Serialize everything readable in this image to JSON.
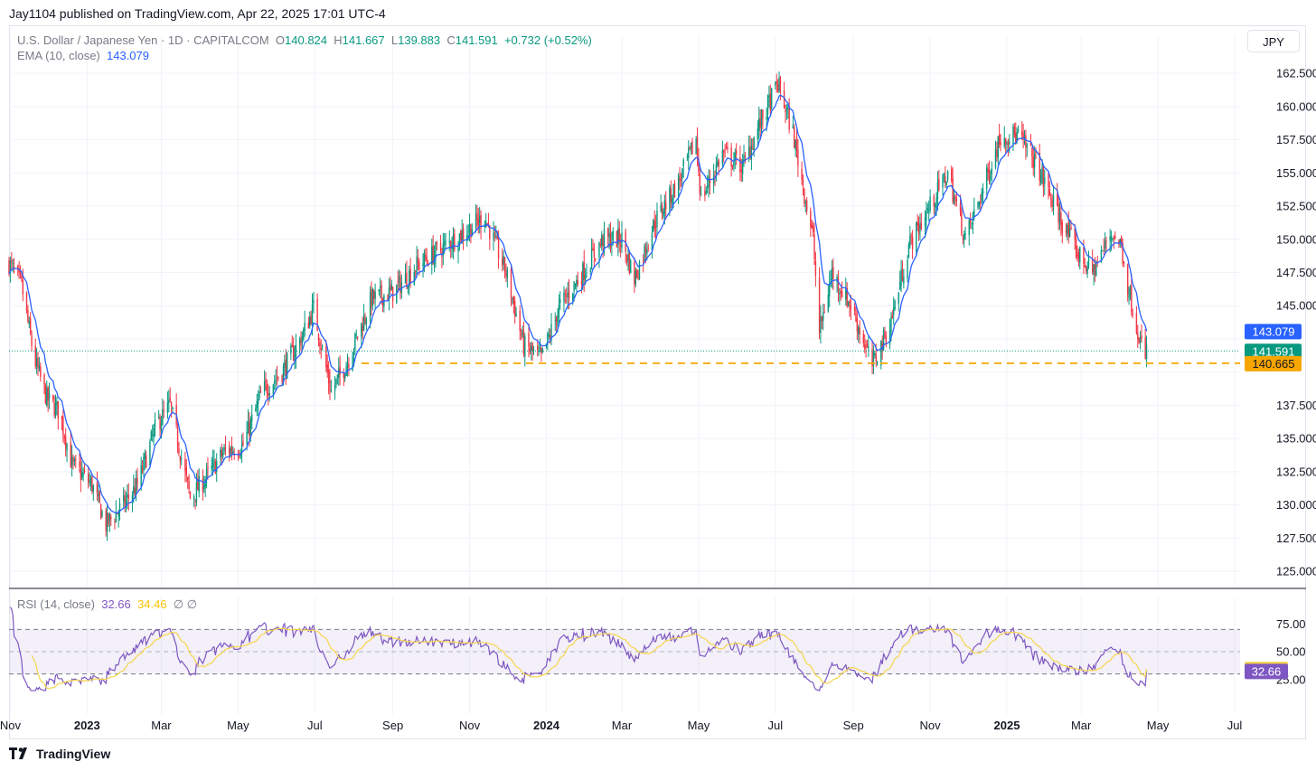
{
  "publish_line": "Jay1104 published on TradingView.com, Apr 22, 2025 17:01 UTC-4",
  "header": {
    "symbol": "U.S. Dollar / Japanese Yen · 1D · CAPITALCOM",
    "o_label": "O",
    "o_value": "140.824",
    "h_label": "H",
    "h_value": "141.667",
    "l_label": "L",
    "l_value": "139.883",
    "c_label": "C",
    "c_value": "141.591",
    "change": "+0.732 (+0.52%)",
    "ema_label": "EMA (10, close)",
    "ema_value": "143.079"
  },
  "currency_button": "JPY",
  "rsi_header": {
    "label": "RSI (14, close)",
    "rsi_value": "32.66",
    "ma_value": "34.46",
    "extra": "∅ ∅"
  },
  "price_badges": {
    "ema": "143.079",
    "close": "141.591",
    "support": "140.665"
  },
  "rsi_badges": {
    "ma": "34.46",
    "rsi": "32.66"
  },
  "footer_brand": "TradingView",
  "colors": {
    "up": "#089981",
    "down": "#f23645",
    "ema": "#2962ff",
    "support": "#f7a600",
    "rsi": "#7e57c2",
    "rsi_ma": "#f7d54a"
  },
  "chart_data": [
    {
      "type": "candlestick",
      "title": "U.S. Dollar / Japanese Yen · 1D · CAPITALCOM",
      "ylim": [
        124,
        164
      ],
      "y_ticks": [
        "162.500",
        "160.000",
        "157.500",
        "155.000",
        "152.500",
        "150.000",
        "147.500",
        "145.000",
        "140.665",
        "137.500",
        "135.000",
        "132.500",
        "130.000",
        "127.500",
        "125.000"
      ],
      "x_ticks": [
        "Nov",
        "2023",
        "Mar",
        "May",
        "Jul",
        "Sep",
        "Nov",
        "2024",
        "Mar",
        "May",
        "Jul",
        "Sep",
        "Nov",
        "2025",
        "Mar",
        "May",
        "Jul"
      ],
      "series": [
        {
          "name": "EMA (10, close)",
          "last": 143.079
        },
        {
          "name": "Close",
          "last": 141.591
        }
      ],
      "horizontal_line": 140.665,
      "price_path": [
        {
          "x": "2022-10-31",
          "y": 148.2
        },
        {
          "x": "2022-11-10",
          "y": 146.5
        },
        {
          "x": "2022-11-20",
          "y": 141.0
        },
        {
          "x": "2022-11-30",
          "y": 138.0
        },
        {
          "x": "2022-12-10",
          "y": 137.0
        },
        {
          "x": "2022-12-20",
          "y": 133.0
        },
        {
          "x": "2023-01-05",
          "y": 131.5
        },
        {
          "x": "2023-01-16",
          "y": 128.5
        },
        {
          "x": "2023-01-30",
          "y": 130.0
        },
        {
          "x": "2023-02-10",
          "y": 131.5
        },
        {
          "x": "2023-02-25",
          "y": 136.0
        },
        {
          "x": "2023-03-08",
          "y": 137.5
        },
        {
          "x": "2023-03-24",
          "y": 130.5
        },
        {
          "x": "2023-04-05",
          "y": 132.0
        },
        {
          "x": "2023-04-20",
          "y": 134.0
        },
        {
          "x": "2023-05-05",
          "y": 134.5
        },
        {
          "x": "2023-05-20",
          "y": 138.5
        },
        {
          "x": "2023-06-05",
          "y": 140.0
        },
        {
          "x": "2023-06-20",
          "y": 142.5
        },
        {
          "x": "2023-06-30",
          "y": 144.8
        },
        {
          "x": "2023-07-14",
          "y": 138.5
        },
        {
          "x": "2023-07-28",
          "y": 141.0
        },
        {
          "x": "2023-08-15",
          "y": 145.5
        },
        {
          "x": "2023-09-01",
          "y": 146.0
        },
        {
          "x": "2023-09-20",
          "y": 148.0
        },
        {
          "x": "2023-10-05",
          "y": 149.0
        },
        {
          "x": "2023-10-20",
          "y": 150.0
        },
        {
          "x": "2023-11-13",
          "y": 151.7
        },
        {
          "x": "2023-11-30",
          "y": 147.5
        },
        {
          "x": "2023-12-14",
          "y": 142.0
        },
        {
          "x": "2023-12-28",
          "y": 141.0
        },
        {
          "x": "2024-01-12",
          "y": 145.0
        },
        {
          "x": "2024-01-30",
          "y": 147.5
        },
        {
          "x": "2024-02-15",
          "y": 150.0
        },
        {
          "x": "2024-03-01",
          "y": 150.0
        },
        {
          "x": "2024-03-11",
          "y": 147.0
        },
        {
          "x": "2024-03-27",
          "y": 151.3
        },
        {
          "x": "2024-04-15",
          "y": 154.3
        },
        {
          "x": "2024-04-29",
          "y": 157.5
        },
        {
          "x": "2024-05-03",
          "y": 153.0
        },
        {
          "x": "2024-05-20",
          "y": 156.5
        },
        {
          "x": "2024-06-05",
          "y": 155.5
        },
        {
          "x": "2024-06-20",
          "y": 159.0
        },
        {
          "x": "2024-07-03",
          "y": 161.7
        },
        {
          "x": "2024-07-15",
          "y": 158.0
        },
        {
          "x": "2024-07-31",
          "y": 150.0
        },
        {
          "x": "2024-08-05",
          "y": 143.0
        },
        {
          "x": "2024-08-15",
          "y": 147.5
        },
        {
          "x": "2024-08-30",
          "y": 145.0
        },
        {
          "x": "2024-09-16",
          "y": 140.5
        },
        {
          "x": "2024-09-30",
          "y": 143.5
        },
        {
          "x": "2024-10-15",
          "y": 149.5
        },
        {
          "x": "2024-11-01",
          "y": 152.5
        },
        {
          "x": "2024-11-15",
          "y": 155.0
        },
        {
          "x": "2024-11-29",
          "y": 150.0
        },
        {
          "x": "2024-12-12",
          "y": 153.5
        },
        {
          "x": "2024-12-27",
          "y": 157.8
        },
        {
          "x": "2025-01-10",
          "y": 157.8
        },
        {
          "x": "2025-01-24",
          "y": 155.8
        },
        {
          "x": "2025-02-10",
          "y": 152.0
        },
        {
          "x": "2025-02-26",
          "y": 149.0
        },
        {
          "x": "2025-03-10",
          "y": 147.5
        },
        {
          "x": "2025-03-25",
          "y": 150.5
        },
        {
          "x": "2025-04-02",
          "y": 149.5
        },
        {
          "x": "2025-04-07",
          "y": 146.5
        },
        {
          "x": "2025-04-15",
          "y": 143.2
        },
        {
          "x": "2025-04-21",
          "y": 140.8
        },
        {
          "x": "2025-04-22",
          "y": 141.591
        }
      ]
    },
    {
      "type": "line",
      "title": "RSI (14, close)",
      "ylim": [
        18,
        85
      ],
      "y_ticks": [
        "75.00",
        "50.00",
        "25.00"
      ],
      "levels": [
        70,
        50,
        30
      ],
      "series": [
        {
          "name": "RSI",
          "last": 32.66
        },
        {
          "name": "RSI MA",
          "last": 34.46
        }
      ]
    }
  ]
}
